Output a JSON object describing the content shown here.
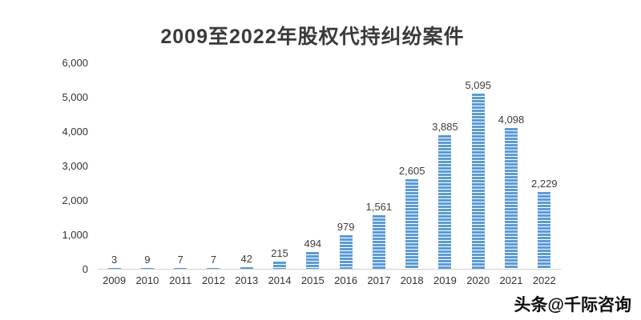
{
  "title": "2009至2022年股权代持纠纷案件",
  "watermark": "头条@千际咨询",
  "chart_data": {
    "type": "bar",
    "title": "2009至2022年股权代持纠纷案件",
    "categories": [
      "2009",
      "2010",
      "2011",
      "2012",
      "2013",
      "2014",
      "2015",
      "2016",
      "2017",
      "2018",
      "2019",
      "2020",
      "2021",
      "2022"
    ],
    "values": [
      3,
      9,
      7,
      7,
      42,
      215,
      494,
      979,
      1561,
      2605,
      3885,
      5095,
      4098,
      2229
    ],
    "value_labels": [
      "3",
      "9",
      "7",
      "7",
      "42",
      "215",
      "494",
      "979",
      "1,561",
      "2,605",
      "3,885",
      "5,095",
      "4,098",
      "2,229"
    ],
    "xlabel": "",
    "ylabel": "",
    "ylim": [
      0,
      6000
    ],
    "ytick_labels_top_to_bottom": [
      "6,000",
      "5,000",
      "4,000",
      "3,000",
      "2,000",
      "1,000",
      "0"
    ],
    "bar_color": "#5b9bd5",
    "bar_pattern": "horizontal-stripes",
    "grid": false,
    "legend": "none"
  }
}
